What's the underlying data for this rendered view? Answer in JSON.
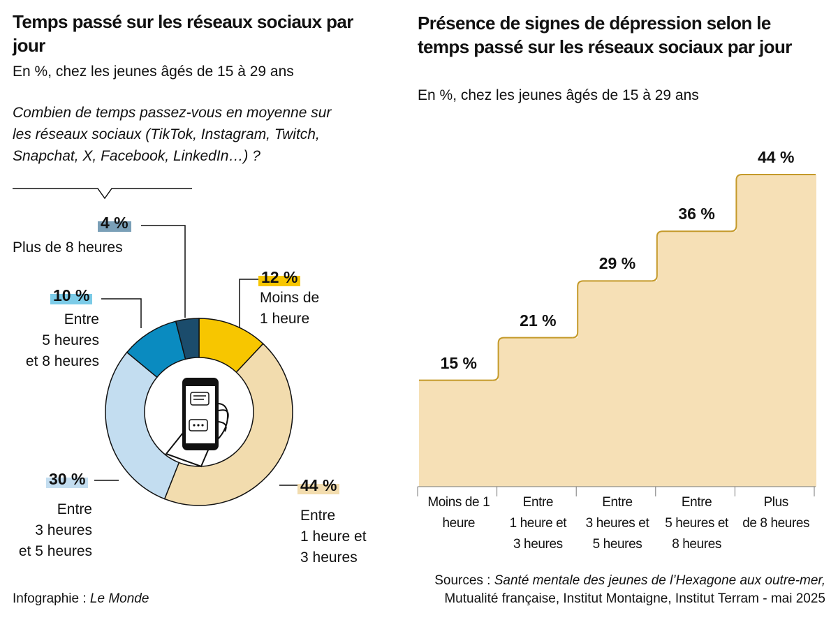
{
  "chart_data": [
    {
      "type": "donut",
      "title": "Temps passé sur les réseaux sociaux par jour",
      "subtitle": "En %, chez les jeunes âgés de 15 à 29 ans",
      "question": "Combien de temps passez-vous en moyenne sur les réseaux sociaux (TikTok, Instagram, Twitch, Snapchat, X, Facebook, LinkedIn…) ?",
      "categories": [
        "Moins de\n1 heure",
        "Entre\n1 heure et\n3 heures",
        "Entre\n3 heures\net 5 heures",
        "Entre\n5 heures\net 8 heures",
        "Plus de 8 heures"
      ],
      "values": [
        12,
        44,
        30,
        10,
        4
      ],
      "value_labels": [
        "12 %",
        "44 %",
        "30 %",
        "10 %",
        "4 %"
      ],
      "colors": [
        "#f7c600",
        "#f2dcae",
        "#c3ddf0",
        "#0a8bc0",
        "#1b4c6c"
      ],
      "label_colors": [
        "#f7c600",
        "#f2dcae",
        "#c3ddf0",
        "#7ccbe7",
        "#7a9fb7"
      ]
    },
    {
      "type": "step",
      "title": "Présence de signes de dépression selon le temps passé sur les réseaux sociaux par jour",
      "subtitle": "En %, chez les jeunes âgés de 15 à 29 ans",
      "categories": [
        "Moins de 1\nheure",
        "Entre\n1 heure et\n3 heures",
        "Entre\n3 heures et\n5 heures",
        "Entre\n5 heures et\n8 heures",
        "Plus\nde 8 heures"
      ],
      "values": [
        15,
        21,
        29,
        36,
        44
      ],
      "value_labels": [
        "15 %",
        "21 %",
        "29 %",
        "36 %",
        "44 %"
      ],
      "color": "#f6e0b6",
      "edge_color": "#c49a2a"
    }
  ],
  "credits": {
    "infographie": "Infographie :",
    "outlet": "Le Monde",
    "sources_label": "Sources :",
    "sources_title": "Santé mentale des jeunes de l’Hexagone aux outre-mer,",
    "sources_rest": "Mutualité française, Institut Montaigne, Institut Terram - mai 2025"
  }
}
